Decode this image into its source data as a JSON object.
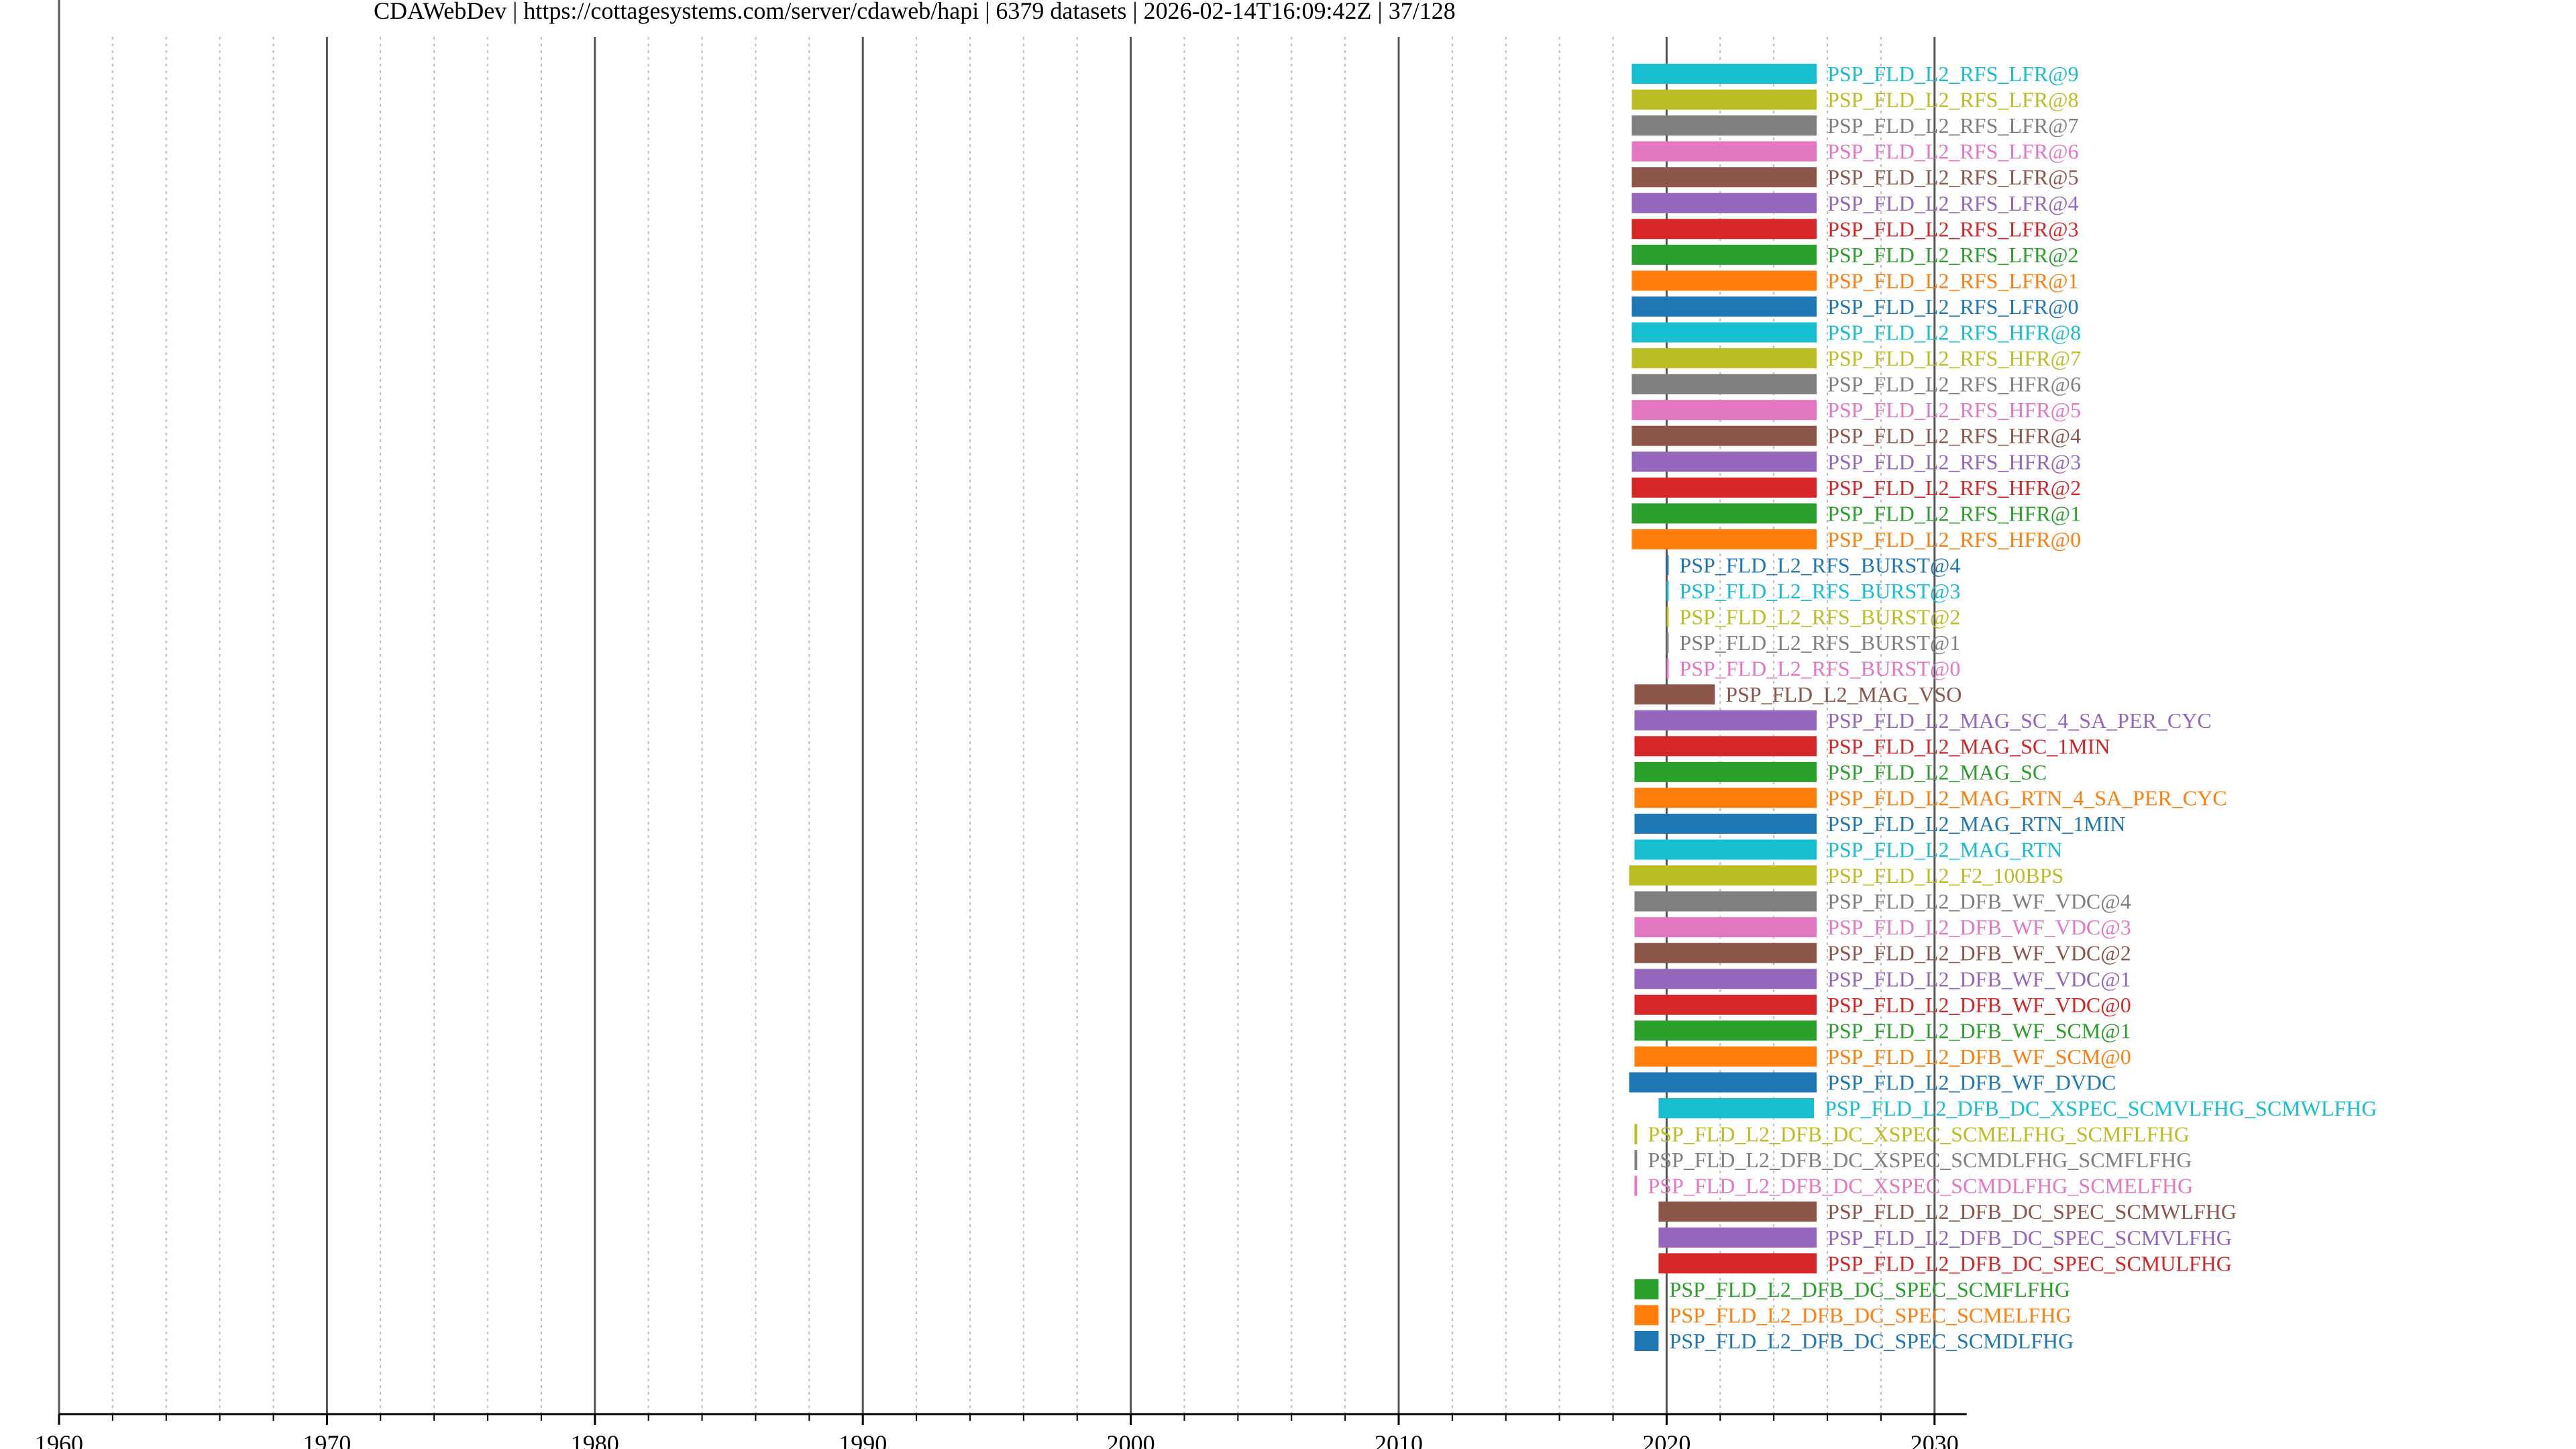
{
  "header": {
    "title": "CDAWebDev | https://cottagesystems.com/server/cdaweb/hapi | 6379 datasets | 2026-02-14T16:09:42Z | 37/128"
  },
  "chart_data": {
    "type": "timeline",
    "xlim": [
      1960,
      2031.2
    ],
    "major_ticks": [
      1960,
      1970,
      1980,
      1990,
      2000,
      2010,
      2020,
      2030
    ],
    "tick_labels": [
      "1960",
      "1970",
      "1980",
      "1990",
      "2000",
      "2010",
      "2020",
      "2030"
    ],
    "minor_step": 2,
    "grid": true,
    "items": [
      {
        "name": "PSP_FLD_L2_RFS_LFR@9",
        "start": 2018.7,
        "end": 2025.6,
        "color": "#17becf"
      },
      {
        "name": "PSP_FLD_L2_RFS_LFR@8",
        "start": 2018.7,
        "end": 2025.6,
        "color": "#bcbd22"
      },
      {
        "name": "PSP_FLD_L2_RFS_LFR@7",
        "start": 2018.7,
        "end": 2025.6,
        "color": "#7f7f7f"
      },
      {
        "name": "PSP_FLD_L2_RFS_LFR@6",
        "start": 2018.7,
        "end": 2025.6,
        "color": "#e377c2"
      },
      {
        "name": "PSP_FLD_L2_RFS_LFR@5",
        "start": 2018.7,
        "end": 2025.6,
        "color": "#8c564b"
      },
      {
        "name": "PSP_FLD_L2_RFS_LFR@4",
        "start": 2018.7,
        "end": 2025.6,
        "color": "#9467bd"
      },
      {
        "name": "PSP_FLD_L2_RFS_LFR@3",
        "start": 2018.7,
        "end": 2025.6,
        "color": "#d62728"
      },
      {
        "name": "PSP_FLD_L2_RFS_LFR@2",
        "start": 2018.7,
        "end": 2025.6,
        "color": "#2ca02c"
      },
      {
        "name": "PSP_FLD_L2_RFS_LFR@1",
        "start": 2018.7,
        "end": 2025.6,
        "color": "#ff7f0e"
      },
      {
        "name": "PSP_FLD_L2_RFS_LFR@0",
        "start": 2018.7,
        "end": 2025.6,
        "color": "#1f77b4"
      },
      {
        "name": "PSP_FLD_L2_RFS_HFR@8",
        "start": 2018.7,
        "end": 2025.6,
        "color": "#17becf"
      },
      {
        "name": "PSP_FLD_L2_RFS_HFR@7",
        "start": 2018.7,
        "end": 2025.6,
        "color": "#bcbd22"
      },
      {
        "name": "PSP_FLD_L2_RFS_HFR@6",
        "start": 2018.7,
        "end": 2025.6,
        "color": "#7f7f7f"
      },
      {
        "name": "PSP_FLD_L2_RFS_HFR@5",
        "start": 2018.7,
        "end": 2025.6,
        "color": "#e377c2"
      },
      {
        "name": "PSP_FLD_L2_RFS_HFR@4",
        "start": 2018.7,
        "end": 2025.6,
        "color": "#8c564b"
      },
      {
        "name": "PSP_FLD_L2_RFS_HFR@3",
        "start": 2018.7,
        "end": 2025.6,
        "color": "#9467bd"
      },
      {
        "name": "PSP_FLD_L2_RFS_HFR@2",
        "start": 2018.7,
        "end": 2025.6,
        "color": "#d62728"
      },
      {
        "name": "PSP_FLD_L2_RFS_HFR@1",
        "start": 2018.7,
        "end": 2025.6,
        "color": "#2ca02c"
      },
      {
        "name": "PSP_FLD_L2_RFS_HFR@0",
        "start": 2018.7,
        "end": 2025.6,
        "color": "#ff7f0e"
      },
      {
        "name": "PSP_FLD_L2_RFS_BURST@4",
        "start": 2020.0,
        "end": 2020.05,
        "color": "#1f77b4"
      },
      {
        "name": "PSP_FLD_L2_RFS_BURST@3",
        "start": 2020.0,
        "end": 2020.05,
        "color": "#17becf"
      },
      {
        "name": "PSP_FLD_L2_RFS_BURST@2",
        "start": 2020.0,
        "end": 2020.05,
        "color": "#bcbd22"
      },
      {
        "name": "PSP_FLD_L2_RFS_BURST@1",
        "start": 2020.0,
        "end": 2020.05,
        "color": "#7f7f7f"
      },
      {
        "name": "PSP_FLD_L2_RFS_BURST@0",
        "start": 2020.0,
        "end": 2020.05,
        "color": "#e377c2"
      },
      {
        "name": "PSP_FLD_L2_MAG_VSO",
        "start": 2018.8,
        "end": 2021.8,
        "color": "#8c564b"
      },
      {
        "name": "PSP_FLD_L2_MAG_SC_4_SA_PER_CYC",
        "start": 2018.8,
        "end": 2025.6,
        "color": "#9467bd"
      },
      {
        "name": "PSP_FLD_L2_MAG_SC_1MIN",
        "start": 2018.8,
        "end": 2025.6,
        "color": "#d62728"
      },
      {
        "name": "PSP_FLD_L2_MAG_SC",
        "start": 2018.8,
        "end": 2025.6,
        "color": "#2ca02c"
      },
      {
        "name": "PSP_FLD_L2_MAG_RTN_4_SA_PER_CYC",
        "start": 2018.8,
        "end": 2025.6,
        "color": "#ff7f0e"
      },
      {
        "name": "PSP_FLD_L2_MAG_RTN_1MIN",
        "start": 2018.8,
        "end": 2025.6,
        "color": "#1f77b4"
      },
      {
        "name": "PSP_FLD_L2_MAG_RTN",
        "start": 2018.8,
        "end": 2025.6,
        "color": "#17becf"
      },
      {
        "name": "PSP_FLD_L2_F2_100BPS",
        "start": 2018.6,
        "end": 2025.6,
        "color": "#bcbd22"
      },
      {
        "name": "PSP_FLD_L2_DFB_WF_VDC@4",
        "start": 2018.8,
        "end": 2025.6,
        "color": "#7f7f7f"
      },
      {
        "name": "PSP_FLD_L2_DFB_WF_VDC@3",
        "start": 2018.8,
        "end": 2025.6,
        "color": "#e377c2"
      },
      {
        "name": "PSP_FLD_L2_DFB_WF_VDC@2",
        "start": 2018.8,
        "end": 2025.6,
        "color": "#8c564b"
      },
      {
        "name": "PSP_FLD_L2_DFB_WF_VDC@1",
        "start": 2018.8,
        "end": 2025.6,
        "color": "#9467bd"
      },
      {
        "name": "PSP_FLD_L2_DFB_WF_VDC@0",
        "start": 2018.8,
        "end": 2025.6,
        "color": "#d62728"
      },
      {
        "name": "PSP_FLD_L2_DFB_WF_SCM@1",
        "start": 2018.8,
        "end": 2025.6,
        "color": "#2ca02c"
      },
      {
        "name": "PSP_FLD_L2_DFB_WF_SCM@0",
        "start": 2018.8,
        "end": 2025.6,
        "color": "#ff7f0e"
      },
      {
        "name": "PSP_FLD_L2_DFB_WF_DVDC",
        "start": 2018.6,
        "end": 2025.6,
        "color": "#1f77b4"
      },
      {
        "name": "PSP_FLD_L2_DFB_DC_XSPEC_SCMVLFHG_SCMWLFHG",
        "start": 2019.7,
        "end": 2025.5,
        "color": "#17becf"
      },
      {
        "name": "PSP_FLD_L2_DFB_DC_XSPEC_SCMELFHG_SCMFLFHG",
        "start": 2018.8,
        "end": 2018.9,
        "color": "#bcbd22"
      },
      {
        "name": "PSP_FLD_L2_DFB_DC_XSPEC_SCMDLFHG_SCMFLFHG",
        "start": 2018.8,
        "end": 2018.9,
        "color": "#7f7f7f"
      },
      {
        "name": "PSP_FLD_L2_DFB_DC_XSPEC_SCMDLFHG_SCMELFHG",
        "start": 2018.8,
        "end": 2018.9,
        "color": "#e377c2"
      },
      {
        "name": "PSP_FLD_L2_DFB_DC_SPEC_SCMWLFHG",
        "start": 2019.7,
        "end": 2025.6,
        "color": "#8c564b"
      },
      {
        "name": "PSP_FLD_L2_DFB_DC_SPEC_SCMVLFHG",
        "start": 2019.7,
        "end": 2025.6,
        "color": "#9467bd"
      },
      {
        "name": "PSP_FLD_L2_DFB_DC_SPEC_SCMULFHG",
        "start": 2019.7,
        "end": 2025.6,
        "color": "#d62728"
      },
      {
        "name": "PSP_FLD_L2_DFB_DC_SPEC_SCMFLFHG",
        "start": 2018.8,
        "end": 2019.7,
        "color": "#2ca02c"
      },
      {
        "name": "PSP_FLD_L2_DFB_DC_SPEC_SCMELFHG",
        "start": 2018.8,
        "end": 2019.7,
        "color": "#ff7f0e"
      },
      {
        "name": "PSP_FLD_L2_DFB_DC_SPEC_SCMDLFHG",
        "start": 2018.8,
        "end": 2019.7,
        "color": "#1f77b4"
      }
    ]
  }
}
